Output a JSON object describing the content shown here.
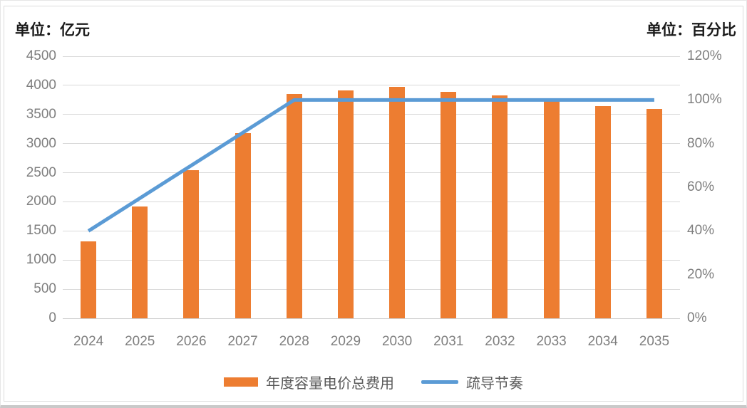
{
  "titles": {
    "left_unit": "单位：亿元",
    "right_unit": "单位：百分比"
  },
  "legend": {
    "bar_label": "年度容量电价总费用",
    "line_label": "疏导节奏"
  },
  "colors": {
    "bar": "#ED7D31",
    "line": "#5B9BD5",
    "grid": "#D9D9D9",
    "axis_line": "#CFCFCF",
    "tick_label": "#7F7F7F",
    "legend_text": "#595959",
    "title_text": "#1A1A1A"
  },
  "chart_data": {
    "type": "bar",
    "subtype": "combo-bar-line-dual-axis",
    "categories": [
      "2024",
      "2025",
      "2026",
      "2027",
      "2028",
      "2029",
      "2030",
      "2031",
      "2032",
      "2033",
      "2034",
      "2035"
    ],
    "series": [
      {
        "name": "年度容量电价总费用",
        "type": "bar",
        "axis": "left",
        "color": "#ED7D31",
        "values": [
          1325,
          1915,
          2545,
          3180,
          3855,
          3915,
          3970,
          3890,
          3830,
          3745,
          3650,
          3590
        ]
      },
      {
        "name": "疏导节奏",
        "type": "line",
        "axis": "right",
        "color": "#5B9BD5",
        "values_percent": [
          40,
          55,
          70,
          85,
          100,
          100,
          100,
          100,
          100,
          100,
          100,
          100
        ]
      }
    ],
    "left_axis": {
      "title": "单位：亿元",
      "min": 0,
      "max": 4500,
      "step": 500,
      "ticks": [
        "0",
        "500",
        "1000",
        "1500",
        "2000",
        "2500",
        "3000",
        "3500",
        "4000",
        "4500"
      ]
    },
    "right_axis": {
      "title": "单位：百分比",
      "min": 0,
      "max": 120,
      "step": 20,
      "ticks": [
        "0%",
        "20%",
        "40%",
        "60%",
        "80%",
        "100%",
        "120%"
      ]
    },
    "grid": true,
    "legend_position": "bottom"
  }
}
